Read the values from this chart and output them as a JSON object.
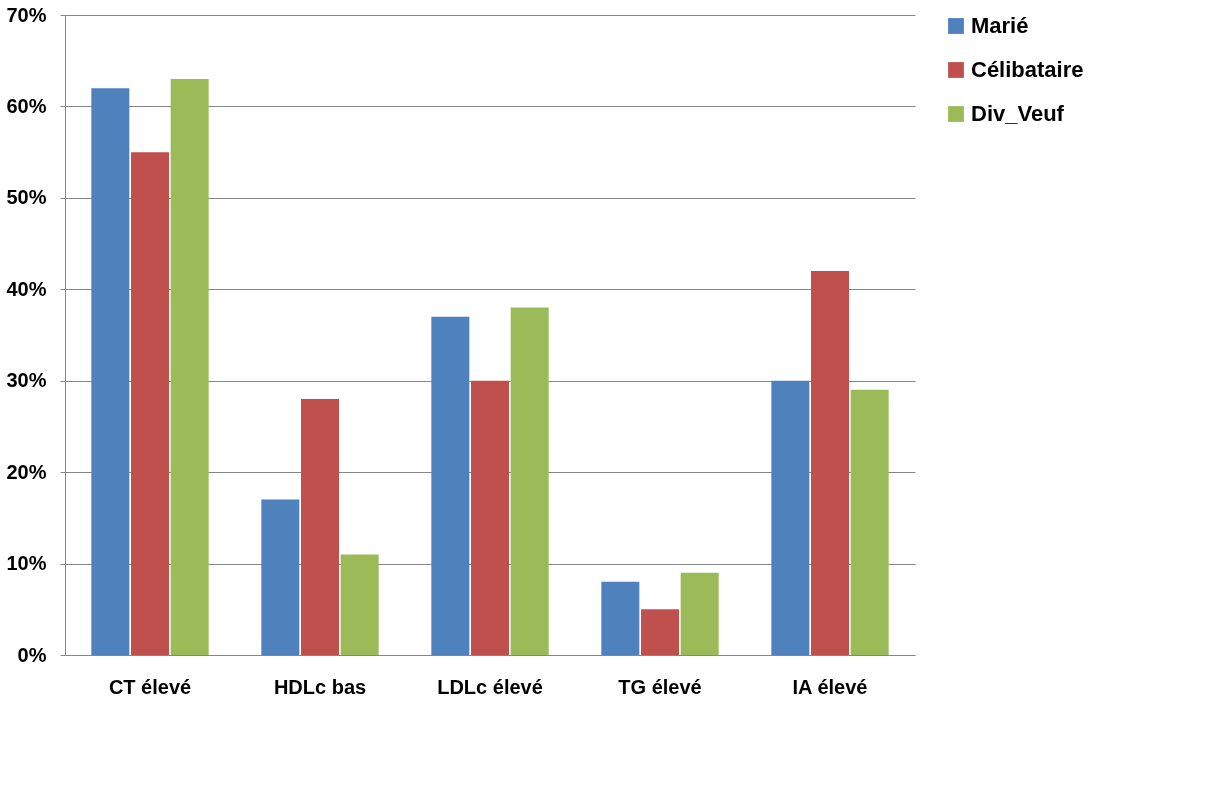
{
  "chart_data": {
    "type": "bar",
    "categories": [
      "CT élevé",
      "HDLc bas",
      "LDLc élevé",
      "TG élevé",
      "IA élevé"
    ],
    "series": [
      {
        "name": "Marié",
        "color": "#4f81bd",
        "values": [
          62,
          17,
          37,
          8,
          30
        ]
      },
      {
        "name": "Célibataire",
        "color": "#c0504d",
        "values": [
          55,
          28,
          30,
          5,
          42
        ]
      },
      {
        "name": "Div_Veuf",
        "color": "#9bbb59",
        "values": [
          63,
          11,
          38,
          9,
          29
        ]
      }
    ],
    "ylim": [
      0,
      70
    ],
    "yticks": [
      {
        "value": 0,
        "label": "0%"
      },
      {
        "value": 10,
        "label": "10%"
      },
      {
        "value": 20,
        "label": "20%"
      },
      {
        "value": 30,
        "label": "30%"
      },
      {
        "value": 40,
        "label": "40%"
      },
      {
        "value": 50,
        "label": "50%"
      },
      {
        "value": 60,
        "label": "60%"
      },
      {
        "value": 70,
        "label": "70%"
      }
    ],
    "grid": "y",
    "legend": "right"
  }
}
